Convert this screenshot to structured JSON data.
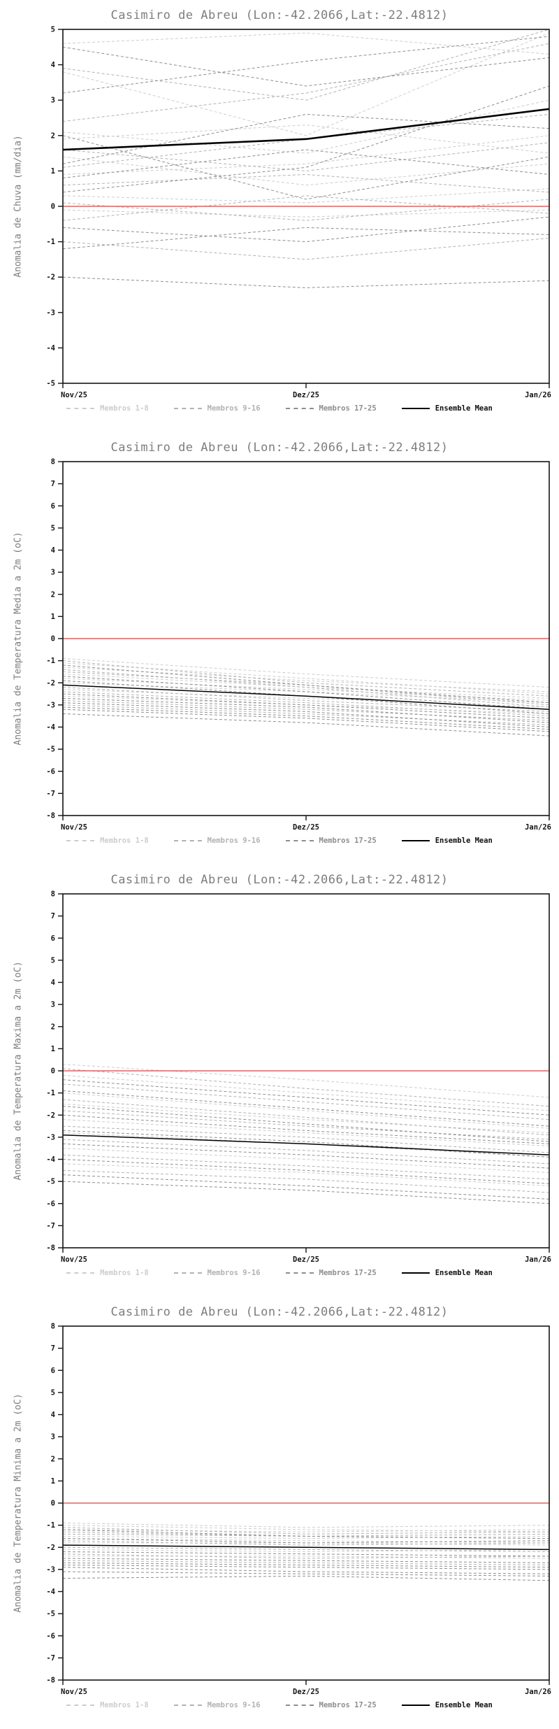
{
  "chart_data": [
    {
      "type": "line",
      "title": "Casimiro de Abreu (Lon:-42.2066,Lat:-22.4812)",
      "ylabel": "Anomalia de Chuva (mm/dia)",
      "xlabel": "",
      "ylim": [
        -5,
        5
      ],
      "ytick_step": 1,
      "grid": "off",
      "legend_position": "bottom",
      "x_labels": [
        "Nov/25",
        "Dez/25",
        "Jan/26"
      ],
      "zero_line": {
        "value": 0,
        "color": "#de6464"
      },
      "mean_line_width": 2.6,
      "groups": [
        {
          "name": "Membros 1-8",
          "color": "#cdcdcd",
          "members": [
            [
              4.6,
              4.9,
              4.3
            ],
            [
              3.8,
              2.0,
              4.9
            ],
            [
              1.9,
              2.3,
              1.5
            ],
            [
              0.9,
              1.2,
              2.0
            ],
            [
              0.3,
              0.1,
              0.5
            ],
            [
              -0.1,
              -0.3,
              -0.1
            ],
            [
              1.4,
              0.6,
              1.2
            ],
            [
              2.1,
              1.5,
              3.0
            ]
          ]
        },
        {
          "name": "Membros 9-16",
          "color": "#b2b2b2",
          "members": [
            [
              3.9,
              3.0,
              5.0
            ],
            [
              1.6,
              1.0,
              1.8
            ],
            [
              0.6,
              0.9,
              0.4
            ],
            [
              -1.0,
              -1.5,
              -0.9
            ],
            [
              0.1,
              -0.4,
              0.2
            ],
            [
              2.4,
              3.2,
              4.6
            ],
            [
              1.1,
              1.9,
              2.6
            ],
            [
              -0.4,
              0.3,
              -0.2
            ]
          ]
        },
        {
          "name": "Membros 17-25",
          "color": "#8e8e8e",
          "members": [
            [
              4.5,
              3.4,
              4.2
            ],
            [
              -2.0,
              -2.3,
              -2.1
            ],
            [
              -1.2,
              -0.6,
              -0.8
            ],
            [
              0.8,
              1.6,
              0.9
            ],
            [
              2.0,
              0.2,
              1.4
            ],
            [
              0.4,
              1.1,
              3.4
            ],
            [
              1.2,
              2.6,
              2.2
            ],
            [
              -0.6,
              -1.0,
              -0.3
            ],
            [
              3.2,
              4.1,
              4.8
            ]
          ]
        }
      ],
      "ensemble_mean": {
        "name": "Ensemble Mean",
        "color": "#000000",
        "values": [
          1.6,
          1.9,
          2.75
        ]
      },
      "legend": [
        {
          "label": "Membros 1-8",
          "color": "#cdcdcd",
          "style": "dashed"
        },
        {
          "label": "Membros 9-16",
          "color": "#b2b2b2",
          "style": "dashed"
        },
        {
          "label": "Membros 17-25",
          "color": "#8e8e8e",
          "style": "dashed"
        },
        {
          "label": "Ensemble Mean",
          "color": "#000000",
          "style": "solid"
        }
      ]
    },
    {
      "type": "line",
      "title": "Casimiro de Abreu (Lon:-42.2066,Lat:-22.4812)",
      "ylabel": "Anomalia de Temperatura Media a 2m (oC)",
      "xlabel": "",
      "ylim": [
        -8,
        8
      ],
      "ytick_step": 1,
      "grid": "off",
      "legend_position": "bottom",
      "x_labels": [
        "Nov/25",
        "Dez/25",
        "Jan/26"
      ],
      "zero_line": {
        "value": 0,
        "color": "#de6464"
      },
      "mean_line_width": 1.5,
      "groups": [
        {
          "name": "Membros 1-8",
          "color": "#cdcdcd",
          "members": [
            [
              -0.9,
              -1.6,
              -2.2
            ],
            [
              -1.3,
              -1.9,
              -2.4
            ],
            [
              -1.6,
              -2.2,
              -2.7
            ],
            [
              -2.0,
              -2.4,
              -2.9
            ],
            [
              -2.3,
              -2.7,
              -3.1
            ],
            [
              -2.6,
              -3.0,
              -3.4
            ],
            [
              -1.1,
              -1.8,
              -2.5
            ],
            [
              -1.8,
              -2.3,
              -2.8
            ]
          ]
        },
        {
          "name": "Membros 9-16",
          "color": "#b2b2b2",
          "members": [
            [
              -1.0,
              -2.0,
              -2.6
            ],
            [
              -1.5,
              -2.1,
              -3.0
            ],
            [
              -2.1,
              -2.6,
              -3.2
            ],
            [
              -2.4,
              -2.9,
              -3.5
            ],
            [
              -2.8,
              -3.2,
              -3.7
            ],
            [
              -3.0,
              -3.4,
              -3.9
            ],
            [
              -1.4,
              -2.2,
              -3.1
            ],
            [
              -2.2,
              -2.8,
              -3.3
            ]
          ]
        },
        {
          "name": "Membros 17-25",
          "color": "#8e8e8e",
          "members": [
            [
              -1.2,
              -2.1,
              -2.9
            ],
            [
              -1.7,
              -2.4,
              -3.2
            ],
            [
              -2.5,
              -3.0,
              -3.6
            ],
            [
              -2.9,
              -3.3,
              -4.0
            ],
            [
              -3.2,
              -3.6,
              -4.2
            ],
            [
              -3.4,
              -3.8,
              -4.4
            ],
            [
              -1.9,
              -2.6,
              -3.4
            ],
            [
              -2.7,
              -3.1,
              -3.8
            ],
            [
              -3.1,
              -3.5,
              -4.1
            ]
          ]
        }
      ],
      "ensemble_mean": {
        "name": "Ensemble Mean",
        "color": "#000000",
        "values": [
          -2.1,
          -2.6,
          -3.2
        ]
      },
      "legend": [
        {
          "label": "Membros 1-8",
          "color": "#cdcdcd",
          "style": "dashed"
        },
        {
          "label": "Membros 9-16",
          "color": "#b2b2b2",
          "style": "dashed"
        },
        {
          "label": "Membros 17-25",
          "color": "#8e8e8e",
          "style": "dashed"
        },
        {
          "label": "Ensemble Mean",
          "color": "#000000",
          "style": "solid"
        }
      ]
    },
    {
      "type": "line",
      "title": "Casimiro de Abreu (Lon:-42.2066,Lat:-22.4812)",
      "ylabel": "Anomalia de Temperatura Maxima a 2m (oC)",
      "xlabel": "",
      "ylim": [
        -8,
        8
      ],
      "ytick_step": 1,
      "grid": "off",
      "legend_position": "bottom",
      "x_labels": [
        "Nov/25",
        "Dez/25",
        "Jan/26"
      ],
      "zero_line": {
        "value": 0,
        "color": "#de6464"
      },
      "mean_line_width": 1.5,
      "groups": [
        {
          "name": "Membros 1-8",
          "color": "#cdcdcd",
          "members": [
            [
              0.3,
              -0.4,
              -1.2
            ],
            [
              -0.2,
              -1.0,
              -1.8
            ],
            [
              -1.5,
              -2.2,
              -2.8
            ],
            [
              -2.2,
              -2.8,
              -3.4
            ],
            [
              -2.8,
              -3.3,
              -3.9
            ],
            [
              -3.5,
              -4.0,
              -4.6
            ],
            [
              -4.2,
              -4.6,
              -5.2
            ],
            [
              -1.0,
              -1.8,
              -2.6
            ]
          ]
        },
        {
          "name": "Membros 9-16",
          "color": "#b2b2b2",
          "members": [
            [
              0.1,
              -0.8,
              -1.6
            ],
            [
              -0.6,
              -1.4,
              -2.2
            ],
            [
              -1.8,
              -2.5,
              -3.1
            ],
            [
              -2.5,
              -3.0,
              -3.7
            ],
            [
              -3.1,
              -3.6,
              -4.2
            ],
            [
              -3.8,
              -4.3,
              -4.9
            ],
            [
              -4.5,
              -4.9,
              -5.5
            ],
            [
              -1.3,
              -2.1,
              -2.9
            ]
          ]
        },
        {
          "name": "Membros 17-25",
          "color": "#8e8e8e",
          "members": [
            [
              -0.4,
              -1.2,
              -2.0
            ],
            [
              -0.9,
              -1.7,
              -2.5
            ],
            [
              -2.0,
              -2.7,
              -3.3
            ],
            [
              -2.7,
              -3.2,
              -3.9
            ],
            [
              -3.3,
              -3.8,
              -4.4
            ],
            [
              -4.0,
              -4.5,
              -5.1
            ],
            [
              -4.7,
              -5.2,
              -5.8
            ],
            [
              -1.6,
              -2.4,
              -3.2
            ],
            [
              -5.0,
              -5.4,
              -6.0
            ]
          ]
        }
      ],
      "ensemble_mean": {
        "name": "Ensemble Mean",
        "color": "#000000",
        "values": [
          -2.9,
          -3.3,
          -3.8
        ]
      },
      "legend": [
        {
          "label": "Membros 1-8",
          "color": "#cdcdcd",
          "style": "dashed"
        },
        {
          "label": "Membros 9-16",
          "color": "#b2b2b2",
          "style": "dashed"
        },
        {
          "label": "Membros 17-25",
          "color": "#8e8e8e",
          "style": "dashed"
        },
        {
          "label": "Ensemble Mean",
          "color": "#000000",
          "style": "solid"
        }
      ]
    },
    {
      "type": "line",
      "title": "Casimiro de Abreu (Lon:-42.2066,Lat:-22.4812)",
      "ylabel": "Anomalia de Temperatura Minima a 2m (oC)",
      "xlabel": "",
      "ylim": [
        -8,
        8
      ],
      "ytick_step": 1,
      "grid": "off",
      "legend_position": "bottom",
      "x_labels": [
        "Nov/25",
        "Dez/25",
        "Jan/26"
      ],
      "zero_line": {
        "value": 0,
        "color": "#de6464"
      },
      "mean_line_width": 1.5,
      "groups": [
        {
          "name": "Membros 1-8",
          "color": "#cdcdcd",
          "members": [
            [
              -0.9,
              -1.1,
              -1.0
            ],
            [
              -1.2,
              -1.3,
              -1.2
            ],
            [
              -1.5,
              -1.6,
              -1.5
            ],
            [
              -1.8,
              -1.8,
              -1.9
            ],
            [
              -2.1,
              -2.2,
              -2.1
            ],
            [
              -2.4,
              -2.4,
              -2.5
            ],
            [
              -1.0,
              -1.2,
              -1.3
            ],
            [
              -1.6,
              -1.7,
              -1.8
            ]
          ]
        },
        {
          "name": "Membros 9-16",
          "color": "#b2b2b2",
          "members": [
            [
              -1.1,
              -1.4,
              -1.3
            ],
            [
              -1.4,
              -1.5,
              -1.6
            ],
            [
              -1.7,
              -1.9,
              -1.8
            ],
            [
              -2.0,
              -2.1,
              -2.2
            ],
            [
              -2.3,
              -2.5,
              -2.4
            ],
            [
              -2.6,
              -2.7,
              -2.8
            ],
            [
              -1.3,
              -1.5,
              -1.4
            ],
            [
              -1.9,
              -2.0,
              -2.1
            ]
          ]
        },
        {
          "name": "Membros 17-25",
          "color": "#8e8e8e",
          "members": [
            [
              -1.2,
              -1.5,
              -1.6
            ],
            [
              -1.6,
              -1.8,
              -1.7
            ],
            [
              -2.2,
              -2.3,
              -2.4
            ],
            [
              -2.5,
              -2.6,
              -2.7
            ],
            [
              -2.8,
              -2.9,
              -3.0
            ],
            [
              -3.1,
              -3.2,
              -3.3
            ],
            [
              -3.4,
              -3.3,
              -3.5
            ],
            [
              -2.7,
              -2.8,
              -2.9
            ],
            [
              -2.9,
              -3.1,
              -3.2
            ]
          ]
        }
      ],
      "ensemble_mean": {
        "name": "Ensemble Mean",
        "color": "#000000",
        "values": [
          -1.9,
          -2.0,
          -2.1
        ]
      },
      "legend": [
        {
          "label": "Membros 1-8",
          "color": "#cdcdcd",
          "style": "dashed"
        },
        {
          "label": "Membros 9-16",
          "color": "#b2b2b2",
          "style": "dashed"
        },
        {
          "label": "Membros 17-25",
          "color": "#8e8e8e",
          "style": "dashed"
        },
        {
          "label": "Ensemble Mean",
          "color": "#000000",
          "style": "solid"
        }
      ]
    }
  ]
}
